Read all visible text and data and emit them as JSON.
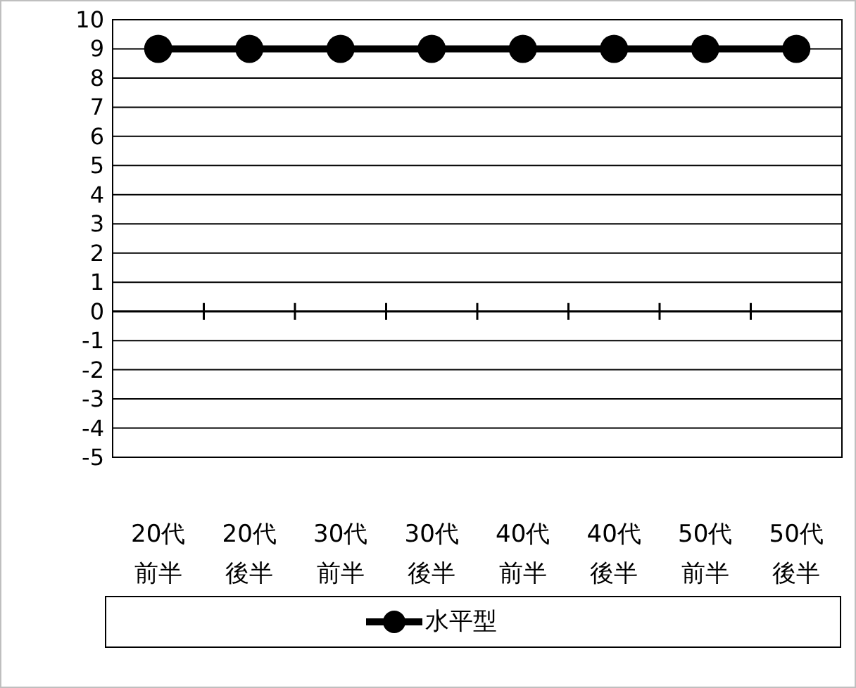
{
  "chart_data": {
    "type": "line",
    "categories": [
      "20代前半",
      "20代後半",
      "30代前半",
      "30代後半",
      "40代前半",
      "40代後半",
      "50代前半",
      "50代後半"
    ],
    "series": [
      {
        "name": "水平型",
        "color": "#000000",
        "values": [
          9,
          9,
          9,
          9,
          9,
          9,
          9,
          9
        ]
      }
    ],
    "ylim": [
      -5,
      10
    ],
    "yticks": [
      -5,
      -4,
      -3,
      -2,
      -1,
      0,
      1,
      2,
      3,
      4,
      5,
      6,
      7,
      8,
      9,
      10
    ],
    "grid": "y",
    "legend": "bottom",
    "marker": "circle",
    "line_style": "solid"
  }
}
